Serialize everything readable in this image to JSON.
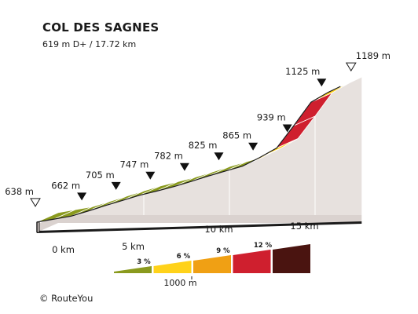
{
  "chart_data": {
    "type": "area",
    "title": "COL DES SAGNES",
    "subtitle": "619 m D+ / 17.72 km",
    "xlabel": "",
    "ylabel": "",
    "distance_km": [
      0,
      1,
      2,
      3,
      4,
      5,
      6,
      7,
      8,
      9,
      10,
      11,
      12,
      13,
      14,
      15,
      16,
      17,
      17.72
    ],
    "elevation_m": [
      638,
      650,
      662,
      683,
      705,
      726,
      747,
      764,
      782,
      803,
      825,
      845,
      865,
      900,
      939,
      1030,
      1125,
      1165,
      1189
    ],
    "segment_slope_pct": [
      1.2,
      1.2,
      2.1,
      2.2,
      2.1,
      2.1,
      1.7,
      1.8,
      2.1,
      2.2,
      2.0,
      2.0,
      3.5,
      3.9,
      9.1,
      9.5,
      4.0,
      3.3
    ],
    "elevation_labels": [
      {
        "km": 0,
        "label": "638 m",
        "marker": "open"
      },
      {
        "km": 2,
        "label": "662 m",
        "marker": "filled"
      },
      {
        "km": 4,
        "label": "705 m",
        "marker": "filled"
      },
      {
        "km": 6,
        "label": "747 m",
        "marker": "filled"
      },
      {
        "km": 8,
        "label": "782 m",
        "marker": "filled"
      },
      {
        "km": 10,
        "label": "825 m",
        "marker": "filled"
      },
      {
        "km": 12,
        "label": "865 m",
        "marker": "filled"
      },
      {
        "km": 14,
        "label": "939 m",
        "marker": "filled"
      },
      {
        "km": 16,
        "label": "1125 m",
        "marker": "filled"
      },
      {
        "km": 17.72,
        "label": "1189 m",
        "marker": "open"
      }
    ],
    "distance_ticks": [
      {
        "km": 0,
        "label": "0 km"
      },
      {
        "km": 5,
        "label": "5 km"
      },
      {
        "km": 10,
        "label": "10 km"
      },
      {
        "km": 15,
        "label": "15 km"
      }
    ],
    "gradient_legend": [
      {
        "label": "3 %",
        "color": "#8a9a1e"
      },
      {
        "label": "6 %",
        "color": "#ffd21a"
      },
      {
        "label": "9 %",
        "color": "#f0a014"
      },
      {
        "label": "12 %",
        "color": "#cf1f2e"
      },
      {
        "label": "",
        "color": "#4a1410"
      }
    ],
    "legend_scale_label": "1000 m",
    "colors": {
      "side": "#e7e1de",
      "bottom": "#dad2cf",
      "edge": "#1a1a1a",
      "segment_line": "#ffffff"
    }
  },
  "footer": {
    "copyright": "©  RouteYou"
  }
}
